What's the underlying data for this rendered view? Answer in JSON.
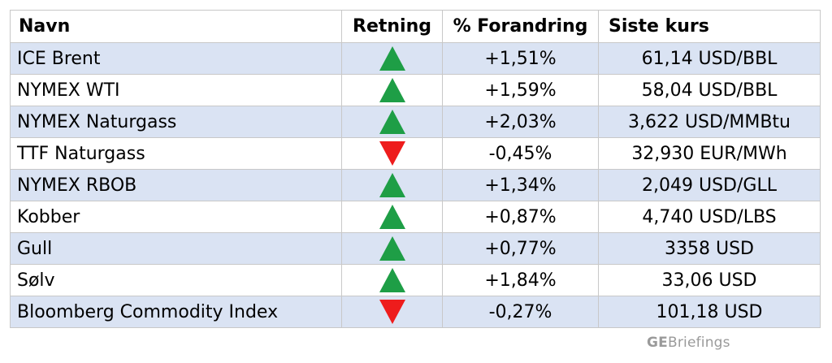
{
  "table": {
    "headers": [
      "Navn",
      "Retning",
      "% Forandring",
      "Siste kurs"
    ],
    "rows": [
      {
        "name": "ICE Brent",
        "direction": "up",
        "change": "+1,51%",
        "price": "61,14 USD/BBL"
      },
      {
        "name": "NYMEX WTI",
        "direction": "up",
        "change": "+1,59%",
        "price": "58,04 USD/BBL"
      },
      {
        "name": "NYMEX Naturgass",
        "direction": "up",
        "change": "+2,03%",
        "price": "3,622 USD/MMBtu"
      },
      {
        "name": "TTF Naturgass",
        "direction": "down",
        "change": "-0,45%",
        "price": "32,930 EUR/MWh"
      },
      {
        "name": "NYMEX RBOB",
        "direction": "up",
        "change": "+1,34%",
        "price": "2,049 USD/GLL"
      },
      {
        "name": "Kobber",
        "direction": "up",
        "change": "+0,87%",
        "price": "4,740 USD/LBS"
      },
      {
        "name": "Gull",
        "direction": "up",
        "change": "+0,77%",
        "price": "3358 USD"
      },
      {
        "name": "Sølv",
        "direction": "up",
        "change": "+1,84%",
        "price": "33,06 USD"
      },
      {
        "name": "Bloomberg Commodity Index",
        "direction": "down",
        "change": "-0,27%",
        "price": "101,18 USD"
      }
    ]
  },
  "colors": {
    "row_alt": "#dae3f3",
    "up_arrow": "#1e9e46",
    "down_arrow": "#ee1c1c",
    "brand": "#9a9a9a"
  },
  "icons": {
    "up": "triangle-up-icon",
    "down": "triangle-down-icon"
  },
  "brand": {
    "prefix": "GE",
    "suffix": "Briefings"
  }
}
